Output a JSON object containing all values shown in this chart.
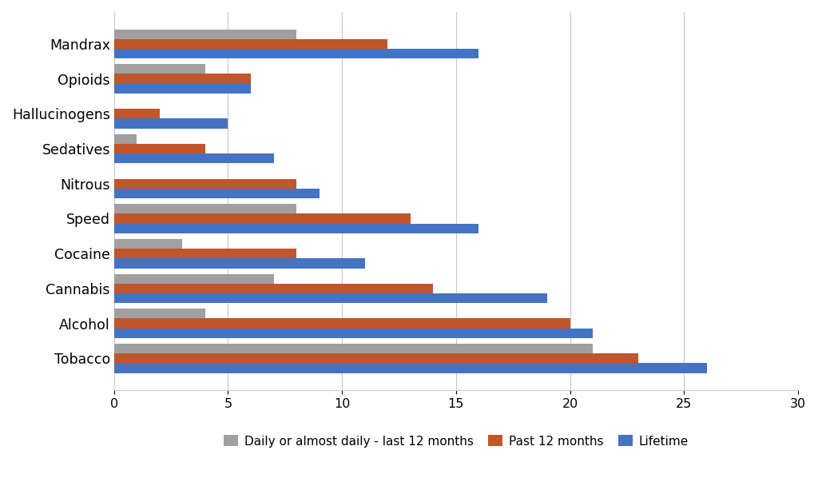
{
  "categories": [
    "Tobacco",
    "Alcohol",
    "Cannabis",
    "Cocaine",
    "Speed",
    "Nitrous",
    "Sedatives",
    "Hallucinogens",
    "Opioids",
    "Mandrax"
  ],
  "daily_last12": [
    21,
    4,
    7,
    3,
    8,
    0,
    1,
    0,
    4,
    8
  ],
  "past_12months": [
    23,
    20,
    14,
    8,
    13,
    8,
    4,
    2,
    6,
    12
  ],
  "lifetime": [
    26,
    21,
    19,
    11,
    16,
    9,
    7,
    5,
    6,
    16
  ],
  "colors": {
    "daily": "#a0a0a0",
    "past12": "#c0562a",
    "lifetime": "#4472c4"
  },
  "legend_labels": [
    "Daily or almost daily - last 12 months",
    "Past 12 months",
    "Lifetime"
  ],
  "xlim": [
    0,
    30
  ],
  "xticks": [
    0,
    5,
    10,
    15,
    20,
    25,
    30
  ],
  "background_color": "#ffffff",
  "grid_color": "#c8c8c8",
  "bar_height": 0.28,
  "figsize": [
    10.24,
    6.18
  ],
  "dpi": 100
}
